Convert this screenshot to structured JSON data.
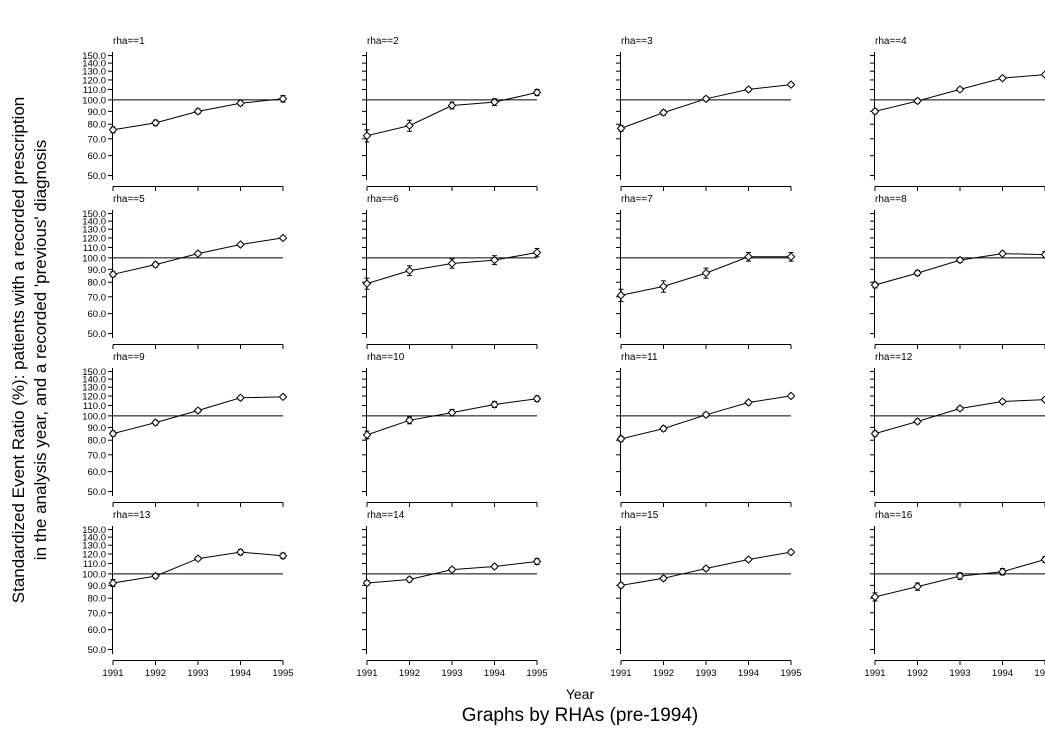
{
  "chart_data": {
    "type": "line",
    "ylabel_line1": "Standardized Event Ratio (%): patients with a recorded prescription",
    "ylabel_line2": "in the analysis year, and a recorded 'previous' diagnosis",
    "xlabel": "Year",
    "note": "Graphs by RHAs (pre-1994)",
    "x": [
      1991,
      1992,
      1993,
      1994,
      1995
    ],
    "x_tick_labels": [
      "1991",
      "1992",
      "1993",
      "1994",
      "1995"
    ],
    "y_ticks": [
      50,
      60,
      70,
      80,
      90,
      100,
      110,
      120,
      130,
      140,
      150
    ],
    "y_tick_labels": [
      "50.0",
      "60.0",
      "70.0",
      "80.0",
      "90.0",
      "100.0",
      "110.0",
      "120.0",
      "130.0",
      "140.0",
      "150.0"
    ],
    "y_scale": "log",
    "ylim": [
      48,
      155
    ],
    "reference_line": 100,
    "panels": [
      {
        "title": "rha==1",
        "values": [
          76,
          81,
          90,
          97,
          101
        ],
        "ci": [
          2,
          2,
          2,
          2,
          3
        ]
      },
      {
        "title": "rha==2",
        "values": [
          72,
          79,
          95,
          98,
          107
        ],
        "ci": [
          4,
          4,
          3,
          3,
          3
        ]
      },
      {
        "title": "rha==3",
        "values": [
          77,
          89,
          101,
          110,
          115
        ],
        "ci": [
          2,
          2,
          2,
          2,
          2
        ]
      },
      {
        "title": "rha==4",
        "values": [
          90,
          99,
          110,
          122,
          126
        ],
        "ci": [
          2,
          2,
          2,
          2,
          2
        ]
      },
      {
        "title": "rha==5",
        "values": [
          86,
          94,
          104,
          113,
          120
        ],
        "ci": [
          2,
          2,
          2,
          2,
          2
        ]
      },
      {
        "title": "rha==6",
        "values": [
          79,
          89,
          95,
          98,
          105
        ],
        "ci": [
          4,
          4,
          4,
          4,
          4
        ]
      },
      {
        "title": "rha==7",
        "values": [
          71,
          77,
          87,
          101,
          101
        ],
        "ci": [
          4,
          4,
          4,
          4,
          4
        ]
      },
      {
        "title": "rha==8",
        "values": [
          78,
          87,
          98,
          104,
          103
        ],
        "ci": [
          2,
          2,
          2,
          2,
          3
        ]
      },
      {
        "title": "rha==9",
        "values": [
          85,
          94,
          105,
          118,
          119
        ],
        "ci": [
          2,
          2,
          2,
          2,
          2
        ]
      },
      {
        "title": "rha==10",
        "values": [
          84,
          96,
          103,
          111,
          117
        ],
        "ci": [
          3,
          3,
          3,
          3,
          3
        ]
      },
      {
        "title": "rha==11",
        "values": [
          81,
          89,
          101,
          113,
          120
        ],
        "ci": [
          2,
          2,
          2,
          2,
          2
        ]
      },
      {
        "title": "rha==12",
        "values": [
          85,
          95,
          107,
          114,
          116
        ],
        "ci": [
          2,
          2,
          2,
          2,
          2
        ]
      },
      {
        "title": "rha==13",
        "values": [
          92,
          98,
          115,
          122,
          118
        ],
        "ci": [
          3,
          2,
          2,
          3,
          3
        ]
      },
      {
        "title": "rha==14",
        "values": [
          92,
          95,
          104,
          107,
          112
        ],
        "ci": [
          2,
          2,
          2,
          2,
          3
        ]
      },
      {
        "title": "rha==15",
        "values": [
          90,
          96,
          105,
          114,
          122
        ],
        "ci": [
          2,
          2,
          2,
          2,
          2
        ]
      },
      {
        "title": "rha==16",
        "values": [
          81,
          89,
          98,
          102,
          114
        ],
        "ci": [
          3,
          3,
          3,
          3,
          3
        ]
      }
    ]
  }
}
